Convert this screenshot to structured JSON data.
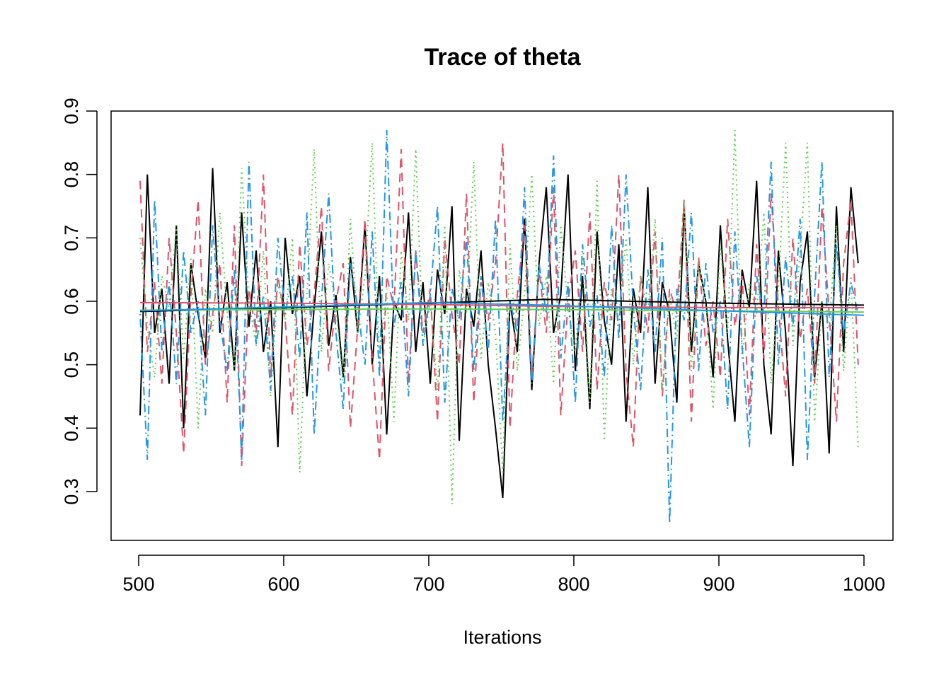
{
  "chart_data": {
    "type": "line",
    "title": "Trace of theta",
    "xlabel": "Iterations",
    "x": [
      501,
      506,
      511,
      516,
      521,
      526,
      531,
      536,
      541,
      546,
      551,
      556,
      561,
      566,
      571,
      576,
      581,
      586,
      591,
      596,
      601,
      606,
      611,
      616,
      621,
      626,
      631,
      636,
      641,
      646,
      651,
      656,
      661,
      666,
      671,
      676,
      681,
      686,
      691,
      696,
      701,
      706,
      711,
      716,
      721,
      726,
      731,
      736,
      741,
      746,
      751,
      756,
      761,
      766,
      771,
      776,
      781,
      786,
      791,
      796,
      801,
      806,
      811,
      816,
      821,
      826,
      831,
      836,
      841,
      846,
      851,
      856,
      861,
      866,
      871,
      876,
      881,
      886,
      891,
      896,
      901,
      906,
      911,
      916,
      921,
      926,
      931,
      936,
      941,
      946,
      951,
      956,
      961,
      966,
      971,
      976,
      981,
      986,
      991,
      996
    ],
    "series": [
      {
        "color": "#000000",
        "dash": "solid",
        "values": [
          0.42,
          0.8,
          0.55,
          0.62,
          0.47,
          0.72,
          0.4,
          0.66,
          0.58,
          0.51,
          0.81,
          0.55,
          0.63,
          0.49,
          0.74,
          0.56,
          0.68,
          0.52,
          0.6,
          0.37,
          0.7,
          0.58,
          0.64,
          0.45,
          0.59,
          0.71,
          0.53,
          0.61,
          0.48,
          0.67,
          0.55,
          0.72,
          0.5,
          0.64,
          0.39,
          0.6,
          0.57,
          0.74,
          0.52,
          0.63,
          0.47,
          0.65,
          0.58,
          0.75,
          0.38,
          0.62,
          0.56,
          0.68,
          0.5,
          0.4,
          0.29,
          0.6,
          0.52,
          0.73,
          0.46,
          0.66,
          0.78,
          0.55,
          0.61,
          0.8,
          0.49,
          0.64,
          0.43,
          0.71,
          0.57,
          0.5,
          0.69,
          0.41,
          0.62,
          0.55,
          0.78,
          0.47,
          0.63,
          0.58,
          0.44,
          0.75,
          0.52,
          0.66,
          0.6,
          0.48,
          0.72,
          0.54,
          0.41,
          0.65,
          0.59,
          0.79,
          0.5,
          0.39,
          0.68,
          0.55,
          0.34,
          0.63,
          0.71,
          0.48,
          0.6,
          0.36,
          0.75,
          0.52,
          0.78,
          0.66
        ]
      },
      {
        "color": "#DF536B",
        "dash": "dashed",
        "values": [
          0.79,
          0.52,
          0.63,
          0.47,
          0.7,
          0.55,
          0.36,
          0.61,
          0.76,
          0.5,
          0.58,
          0.66,
          0.44,
          0.72,
          0.34,
          0.62,
          0.55,
          0.8,
          0.48,
          0.64,
          0.57,
          0.42,
          0.69,
          0.53,
          0.61,
          0.75,
          0.49,
          0.6,
          0.66,
          0.4,
          0.56,
          0.73,
          0.51,
          0.35,
          0.64,
          0.59,
          0.84,
          0.47,
          0.68,
          0.55,
          0.62,
          0.41,
          0.7,
          0.58,
          0.5,
          0.77,
          0.44,
          0.63,
          0.57,
          0.66,
          0.85,
          0.4,
          0.61,
          0.72,
          0.48,
          0.65,
          0.55,
          0.78,
          0.42,
          0.6,
          0.68,
          0.52,
          0.74,
          0.46,
          0.63,
          0.57,
          0.8,
          0.49,
          0.37,
          0.64,
          0.55,
          0.71,
          0.45,
          0.62,
          0.58,
          0.76,
          0.41,
          0.67,
          0.53,
          0.6,
          0.48,
          0.73,
          0.56,
          0.64,
          0.42,
          0.69,
          0.51,
          0.77,
          0.59,
          0.45,
          0.7,
          0.54,
          0.62,
          0.47,
          0.75,
          0.58,
          0.41,
          0.66,
          0.76,
          0.5
        ]
      },
      {
        "color": "#61D04F",
        "dash": "dotted",
        "values": [
          0.7,
          0.56,
          0.48,
          0.64,
          0.59,
          0.72,
          0.51,
          0.67,
          0.4,
          0.62,
          0.55,
          0.74,
          0.58,
          0.49,
          0.81,
          0.6,
          0.53,
          0.68,
          0.45,
          0.63,
          0.57,
          0.7,
          0.33,
          0.61,
          0.84,
          0.52,
          0.66,
          0.59,
          0.47,
          0.73,
          0.55,
          0.64,
          0.85,
          0.5,
          0.62,
          0.41,
          0.68,
          0.57,
          0.84,
          0.53,
          0.6,
          0.46,
          0.72,
          0.28,
          0.65,
          0.58,
          0.82,
          0.51,
          0.63,
          0.55,
          0.33,
          0.69,
          0.49,
          0.61,
          0.8,
          0.56,
          0.64,
          0.47,
          0.72,
          0.59,
          0.52,
          0.67,
          0.44,
          0.79,
          0.38,
          0.62,
          0.57,
          0.7,
          0.5,
          0.64,
          0.58,
          0.73,
          0.46,
          0.61,
          0.54,
          0.76,
          0.49,
          0.66,
          0.6,
          0.43,
          0.69,
          0.55,
          0.87,
          0.51,
          0.63,
          0.58,
          0.74,
          0.47,
          0.62,
          0.85,
          0.53,
          0.68,
          0.85,
          0.41,
          0.6,
          0.56,
          0.72,
          0.49,
          0.64,
          0.37
        ]
      },
      {
        "color": "#2297E6",
        "dash": "dotdash",
        "values": [
          0.58,
          0.35,
          0.76,
          0.52,
          0.63,
          0.47,
          0.68,
          0.55,
          0.6,
          0.42,
          0.72,
          0.57,
          0.49,
          0.65,
          0.35,
          0.82,
          0.53,
          0.61,
          0.46,
          0.7,
          0.58,
          0.64,
          0.51,
          0.74,
          0.39,
          0.6,
          0.77,
          0.55,
          0.43,
          0.66,
          0.59,
          0.5,
          0.71,
          0.48,
          0.87,
          0.56,
          0.63,
          0.45,
          0.68,
          0.53,
          0.61,
          0.75,
          0.44,
          0.62,
          0.57,
          0.7,
          0.49,
          0.64,
          0.52,
          0.73,
          0.41,
          0.6,
          0.55,
          0.78,
          0.47,
          0.66,
          0.58,
          0.83,
          0.51,
          0.63,
          0.44,
          0.69,
          0.56,
          0.61,
          0.48,
          0.72,
          0.54,
          0.8,
          0.59,
          0.46,
          0.65,
          0.52,
          0.7,
          0.25,
          0.62,
          0.57,
          0.74,
          0.49,
          0.66,
          0.55,
          0.6,
          0.43,
          0.71,
          0.53,
          0.37,
          0.64,
          0.58,
          0.82,
          0.5,
          0.67,
          0.56,
          0.73,
          0.35,
          0.61,
          0.82,
          0.48,
          0.69,
          0.55,
          0.63,
          0.58
        ]
      },
      {
        "color": "#000000",
        "dash": "solid",
        "x": [
          501,
          600,
          700,
          780,
          900,
          1000
        ],
        "values": [
          0.584,
          0.59,
          0.597,
          0.603,
          0.597,
          0.594
        ]
      },
      {
        "color": "#DF536B",
        "dash": "solid",
        "x": [
          501,
          600,
          700,
          780,
          900,
          1000
        ],
        "values": [
          0.598,
          0.597,
          0.595,
          0.592,
          0.59,
          0.59
        ]
      },
      {
        "color": "#61D04F",
        "dash": "solid",
        "x": [
          501,
          600,
          700,
          780,
          900,
          1000
        ],
        "values": [
          0.586,
          0.587,
          0.588,
          0.587,
          0.585,
          0.583
        ]
      },
      {
        "color": "#2297E6",
        "dash": "solid",
        "x": [
          501,
          600,
          700,
          780,
          900,
          1000
        ],
        "values": [
          0.585,
          0.591,
          0.598,
          0.594,
          0.585,
          0.578
        ]
      }
    ],
    "xlim": [
      481,
      1020
    ],
    "ylim": [
      0.223,
      0.9
    ],
    "xticks": [
      500,
      600,
      700,
      800,
      900,
      1000
    ],
    "yticks": [
      0.3,
      0.4,
      0.5,
      0.6,
      0.7,
      0.8,
      0.9
    ]
  }
}
